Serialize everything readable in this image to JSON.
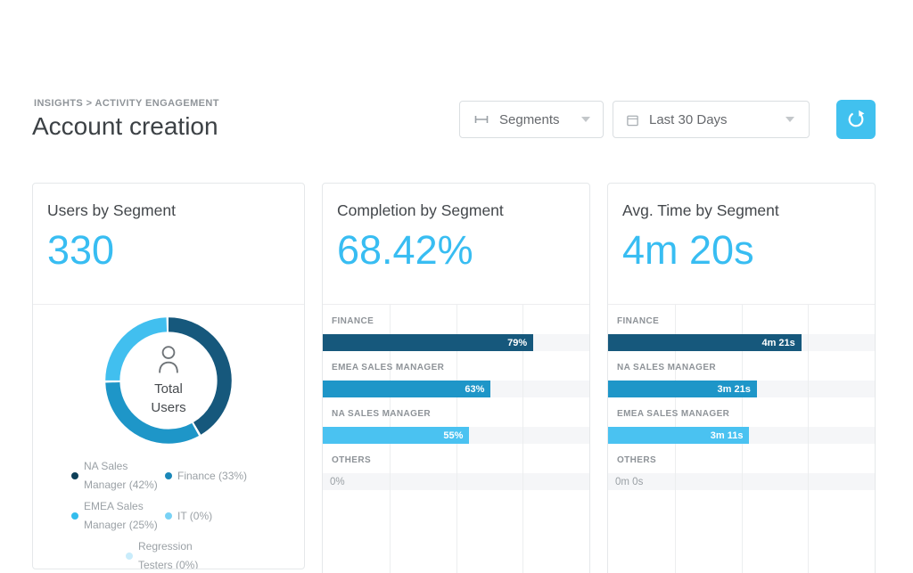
{
  "breadcrumb": "INSIGHTS > ACTIVITY ENGAGEMENT",
  "title": "Account creation",
  "toolbar": {
    "segments_label": "Segments",
    "date_label": "Last 30 Days",
    "refresh_color": "#41c1ef"
  },
  "cards": [
    {
      "title": "Users by Segment",
      "stat": "330",
      "center": {
        "line1": "Total",
        "line2": "Users"
      },
      "legend": [
        {
          "label": "NA Sales Manager (42%)",
          "color": "#0d3f58"
        },
        {
          "label": "Finance (33%)",
          "color": "#1a87b8"
        },
        {
          "label": "EMEA Sales Manager (25%)",
          "color": "#33bded"
        },
        {
          "label": "IT (0%)",
          "color": "#79d2f5"
        },
        {
          "label": "Regression Testers (0%)",
          "color": "#c9ecfb"
        }
      ]
    },
    {
      "title": "Completion by Segment",
      "stat": "68.42%"
    },
    {
      "title": "Avg. Time by Segment",
      "stat": "4m 20s"
    }
  ],
  "chart_data": [
    {
      "type": "pie",
      "title": "Users by Segment",
      "total_users": 330,
      "center_label": "Total Users",
      "slices": [
        {
          "label": "NA Sales Manager",
          "pct": 42,
          "color": "#16587c"
        },
        {
          "label": "Finance",
          "pct": 33,
          "color": "#1e96c8"
        },
        {
          "label": "EMEA Sales Manager",
          "pct": 25,
          "color": "#41bfef"
        },
        {
          "label": "IT",
          "pct": 0,
          "color": "#79d2f5"
        },
        {
          "label": "Regression Testers",
          "pct": 0,
          "color": "#c9ecfb"
        }
      ]
    },
    {
      "type": "bar",
      "title": "Completion by Segment",
      "orientation": "horizontal",
      "xlim": [
        0,
        100
      ],
      "gridlines_pct": [
        25,
        50,
        75
      ],
      "rows": [
        {
          "label": "FINANCE",
          "value": 79,
          "value_label": "79%",
          "pct": 79,
          "color": "#16587c"
        },
        {
          "label": "EMEA SALES MANAGER",
          "value": 63,
          "value_label": "63%",
          "pct": 63,
          "color": "#1e96c8"
        },
        {
          "label": "NA SALES MANAGER",
          "value": 55,
          "value_label": "55%",
          "pct": 55,
          "color": "#4ac2f1"
        },
        {
          "label": "OTHERS",
          "value": 0,
          "value_label": "0%",
          "pct": 0
        }
      ]
    },
    {
      "type": "bar",
      "title": "Avg. Time by Segment",
      "orientation": "horizontal",
      "xlim_seconds": [
        0,
        360
      ],
      "gridlines_pct": [
        25,
        50,
        75
      ],
      "rows": [
        {
          "label": "FINANCE",
          "seconds": 261,
          "value_label": "4m 21s",
          "pct": 72.5,
          "color": "#16587c"
        },
        {
          "label": "NA SALES MANAGER",
          "seconds": 201,
          "value_label": "3m 21s",
          "pct": 55.8,
          "color": "#1e96c8"
        },
        {
          "label": "EMEA SALES MANAGER",
          "seconds": 191,
          "value_label": "3m 11s",
          "pct": 53,
          "color": "#4ac2f1"
        },
        {
          "label": "OTHERS",
          "seconds": 0,
          "value_label": "0m 0s",
          "pct": 0
        }
      ]
    }
  ]
}
